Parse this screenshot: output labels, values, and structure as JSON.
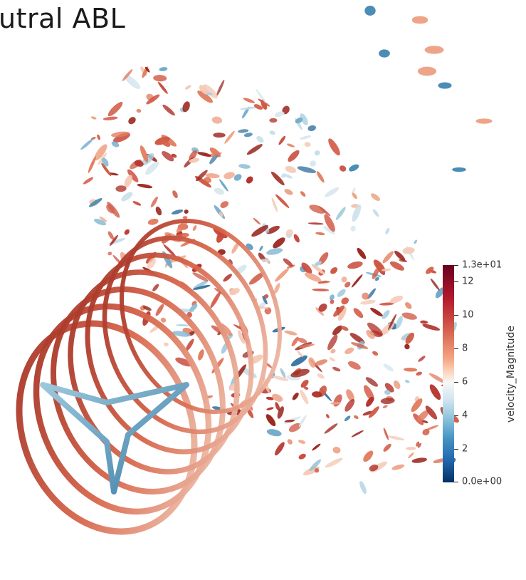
{
  "title": "utral ABL",
  "colorbar": {
    "title": "velocity_Magnitude",
    "max_label": "1.3e+01",
    "min_label": "0.0e+00",
    "ticks": [
      "12",
      "10",
      "8",
      "6",
      "4",
      "2"
    ],
    "colormap": "blue-white-red"
  }
}
